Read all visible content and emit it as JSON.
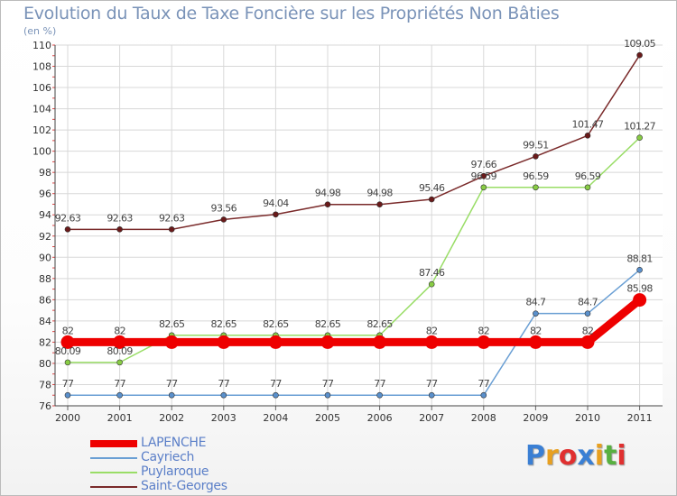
{
  "header": {
    "title": "Evolution du Taux de Taxe Foncière sur les Propriétés Non Bâties",
    "subtitle": "(en %)"
  },
  "brand": {
    "letters": [
      "P",
      "r",
      "o",
      "x",
      "i",
      "t",
      "i"
    ],
    "colors": [
      "#3a7fd4",
      "#e8a020",
      "#e03030",
      "#3a7fd4",
      "#e8a020",
      "#58b040",
      "#e03030"
    ]
  },
  "chart_data": {
    "type": "line",
    "title": "Evolution du Taux de Taxe Foncière sur les Propriétés Non Bâties",
    "ylabel": "(en %)",
    "x": [
      "2000",
      "2001",
      "2002",
      "2003",
      "2004",
      "2005",
      "2006",
      "2007",
      "2008",
      "2009",
      "2010",
      "2011"
    ],
    "ylim": [
      76,
      110
    ],
    "yticks": [
      76,
      78,
      80,
      82,
      84,
      86,
      88,
      90,
      92,
      94,
      96,
      98,
      100,
      102,
      104,
      106,
      108,
      110
    ],
    "grid": true,
    "legend_position": "bottom-left",
    "series": [
      {
        "name": "LAPENCHE",
        "color": "#ee0000",
        "values": [
          82,
          82,
          82,
          82,
          82,
          82,
          82,
          82,
          82,
          82,
          82,
          85.98
        ],
        "labels": [
          "82",
          "82",
          "",
          "",
          "",
          "",
          "",
          "82",
          "82",
          "82",
          "82",
          "85.98"
        ]
      },
      {
        "name": "Cayriech",
        "color": "#6a9fd4",
        "values": [
          77,
          77,
          77,
          77,
          77,
          77,
          77,
          77,
          77,
          84.7,
          84.7,
          88.81
        ],
        "labels": [
          "77",
          "77",
          "77",
          "77",
          "77",
          "77",
          "77",
          "77",
          "77",
          "84.7",
          "84.7",
          "88.81"
        ]
      },
      {
        "name": "Puylaroque",
        "color": "#99dd66",
        "values": [
          80.09,
          80.09,
          82.65,
          82.65,
          82.65,
          82.65,
          82.65,
          87.46,
          96.59,
          96.59,
          96.59,
          101.27
        ],
        "labels": [
          "80.09",
          "80.09",
          "82.65",
          "82.65",
          "82.65",
          "82.65",
          "82.65",
          "87.46",
          "96.59",
          "96.59",
          "96.59",
          "101.27"
        ]
      },
      {
        "name": "Saint-Georges",
        "color": "#7a2a2a",
        "values": [
          92.63,
          92.63,
          92.63,
          93.56,
          94.04,
          94.98,
          94.98,
          95.46,
          97.66,
          99.51,
          101.47,
          109.05
        ],
        "labels": [
          "92.63",
          "92.63",
          "92.63",
          "93.56",
          "94.04",
          "94.98",
          "94.98",
          "95.46",
          "97.66",
          "99.51",
          "101.47",
          "109.05"
        ]
      }
    ]
  }
}
